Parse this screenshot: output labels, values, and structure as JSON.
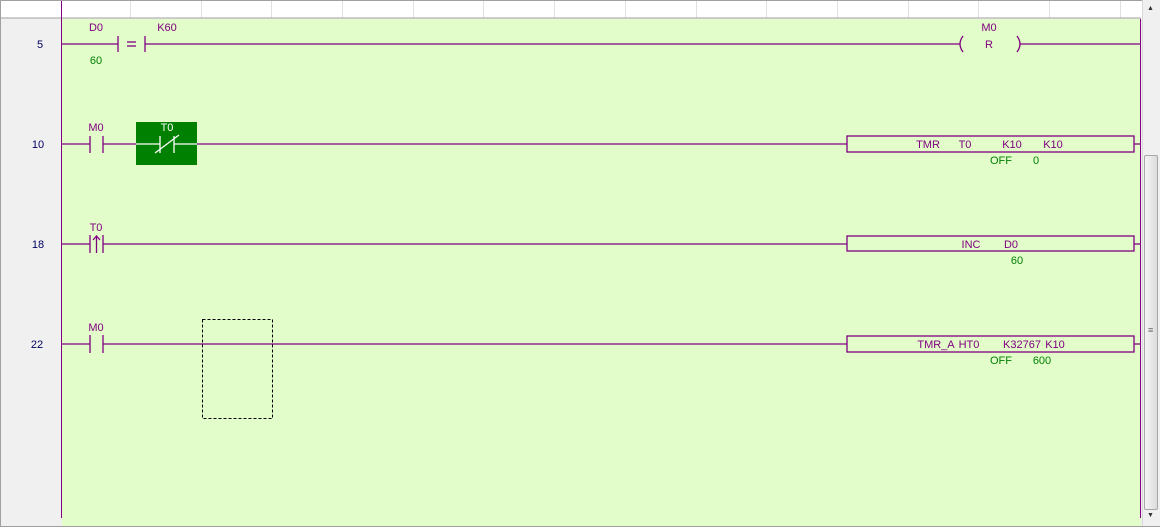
{
  "colors": {
    "background": "#e2fcca",
    "wire": "#800080",
    "label": "#800080",
    "value": "#008000",
    "selected": "#008000"
  },
  "rungs": [
    {
      "step": "5",
      "compare": {
        "op1": "D0",
        "op": "=",
        "op2": "K60",
        "op1_value": "60"
      },
      "coil": {
        "device": "M0",
        "type": "R"
      }
    },
    {
      "step": "10",
      "contact1": {
        "device": "M0",
        "type": "NO"
      },
      "contact2": {
        "device": "T0",
        "type": "NC",
        "selected": true
      },
      "instr": {
        "name": "TMR",
        "args": [
          "T0",
          "K10",
          "K10"
        ],
        "status": "OFF",
        "current": "0"
      }
    },
    {
      "step": "18",
      "contact1": {
        "device": "T0",
        "type": "rising-edge"
      },
      "instr": {
        "name": "INC",
        "args": [
          "D0"
        ],
        "current": "60"
      }
    },
    {
      "step": "22",
      "contact1": {
        "device": "M0",
        "type": "NO"
      },
      "instr": {
        "name": "TMR_A",
        "args": [
          "HT0",
          "K32767",
          "K10"
        ],
        "status": "OFF",
        "current": "600"
      }
    }
  ],
  "scrollbar": {
    "up_icon": "arrow-up-icon",
    "down_icon": "arrow-down-icon"
  }
}
